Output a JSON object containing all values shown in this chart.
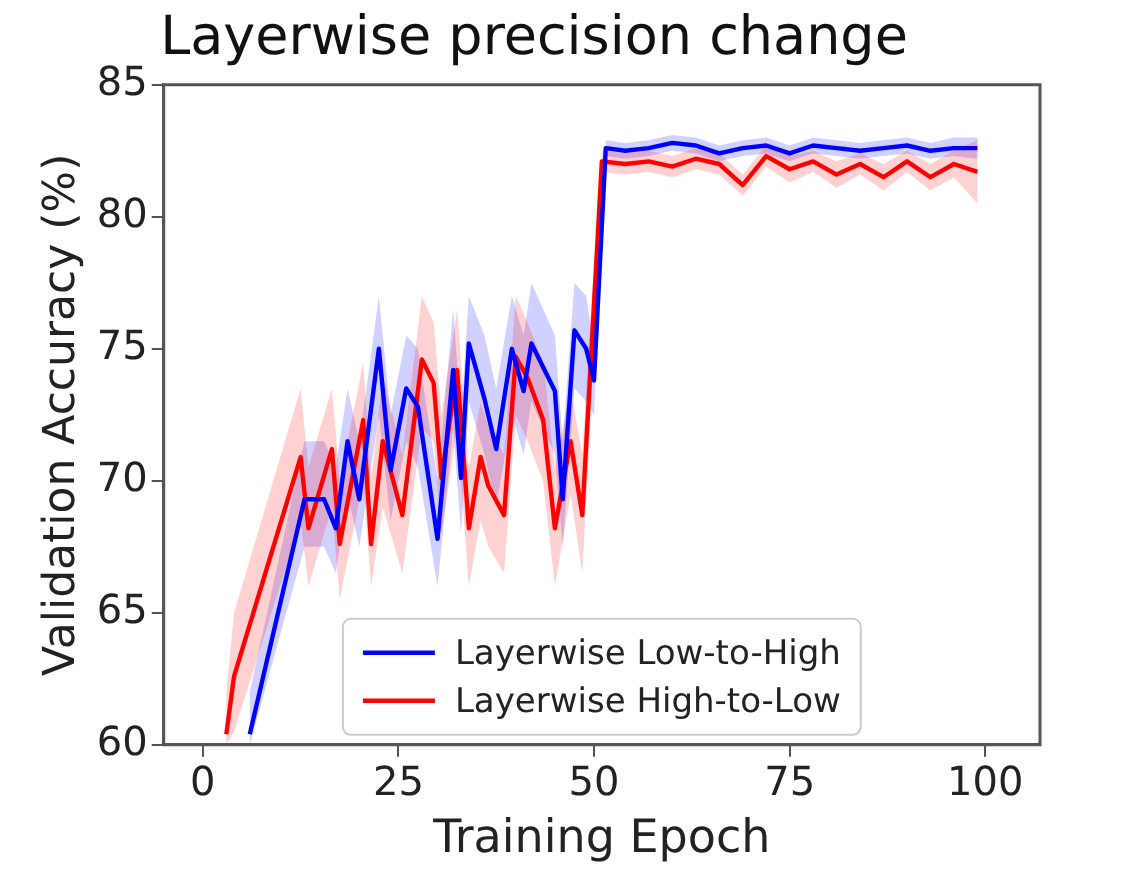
{
  "chart_data": {
    "type": "line",
    "title": "Layerwise precision change",
    "xlabel": "Training Epoch",
    "ylabel": "Validation Accuracy (%)",
    "xlim": [
      -5,
      107
    ],
    "xticks": [
      0,
      25,
      50,
      75,
      100
    ],
    "ylim": [
      60,
      85
    ],
    "yticks": [
      60,
      65,
      70,
      75,
      80,
      85
    ],
    "grid": false,
    "legend": "bottom",
    "marker": "none",
    "line_style": "solid",
    "series": [
      {
        "name": "Layerwise Low-to-High",
        "color": "#0000ff",
        "x": [
          6,
          13,
          15.5,
          17,
          18.5,
          20,
          22.5,
          24,
          26,
          27.5,
          30,
          32,
          33,
          34,
          36,
          37.5,
          39.5,
          41,
          42,
          45,
          46,
          47.5,
          49,
          50,
          51.5,
          54,
          57,
          60,
          63,
          66,
          69,
          72,
          75,
          78,
          81,
          84,
          87,
          90,
          93,
          96,
          99
        ],
        "values": [
          60.4,
          69.3,
          69.3,
          68.2,
          71.5,
          69.3,
          75,
          70.4,
          73.5,
          72.8,
          67.8,
          74.2,
          70.1,
          75.2,
          73.1,
          71.2,
          75,
          73.4,
          75.2,
          73.4,
          69.3,
          75.7,
          75,
          73.8,
          82.6,
          82.5,
          82.6,
          82.8,
          82.7,
          82.4,
          82.6,
          82.7,
          82.4,
          82.7,
          82.6,
          82.5,
          82.6,
          82.7,
          82.5,
          82.6,
          82.6
        ],
        "lower": [
          60,
          67.5,
          67.5,
          66.5,
          69.5,
          67.5,
          72.5,
          68.5,
          71.5,
          70.5,
          66,
          72,
          68,
          73,
          71,
          69,
          72.5,
          71,
          73,
          71,
          67.5,
          73.5,
          73,
          72.5,
          82.3,
          82.2,
          82.3,
          82.5,
          82.4,
          82.1,
          82.3,
          82.4,
          82.1,
          82.4,
          82.3,
          82.2,
          82.3,
          82.4,
          82.2,
          82.3,
          82.2
        ],
        "upper": [
          62,
          71.5,
          71.5,
          70.5,
          73.5,
          71.5,
          77,
          72.5,
          75.5,
          75,
          70,
          76.5,
          72.5,
          77,
          75.5,
          73.5,
          77,
          75.5,
          77.5,
          75.5,
          71.5,
          77.5,
          77,
          75,
          82.9,
          82.8,
          82.9,
          83.1,
          83,
          82.7,
          82.9,
          83,
          82.7,
          83,
          82.9,
          82.8,
          82.9,
          83,
          82.8,
          83,
          83
        ]
      },
      {
        "name": "Layerwise High-to-Low",
        "color": "#ff0000",
        "x": [
          3,
          4,
          12.5,
          13.5,
          16.5,
          17.5,
          20.5,
          21.5,
          23,
          25.5,
          28,
          29.5,
          30.5,
          32.5,
          34,
          35.5,
          36.5,
          38.5,
          40,
          41.5,
          43.5,
          45,
          47,
          48.5,
          49.5,
          51,
          54,
          57,
          60,
          63,
          66,
          69,
          72,
          75,
          78,
          81,
          84,
          87,
          90,
          93,
          96,
          99
        ],
        "values": [
          60.4,
          62.6,
          70.9,
          68.2,
          71.2,
          67.6,
          72.3,
          67.6,
          71.5,
          68.7,
          74.6,
          73.7,
          70.1,
          74.2,
          68.2,
          70.9,
          69.8,
          68.7,
          74.7,
          73.9,
          72.3,
          68.2,
          71.5,
          68.7,
          74,
          82.1,
          82,
          82.1,
          81.9,
          82.2,
          82,
          81.2,
          82.3,
          81.8,
          82.1,
          81.6,
          82,
          81.5,
          82.1,
          81.5,
          82,
          81.7
        ],
        "lower": [
          60,
          60.5,
          68.5,
          66,
          69,
          65.5,
          70,
          66,
          69,
          66.5,
          72,
          71.5,
          68,
          72,
          66,
          68.5,
          67.5,
          66.5,
          72.5,
          71.5,
          70,
          66,
          69.5,
          66.5,
          72,
          81.7,
          81.6,
          81.7,
          81.5,
          81.8,
          81.6,
          80.8,
          81.9,
          81.3,
          81.7,
          81.1,
          81.6,
          81,
          81.7,
          81,
          81.5,
          80.5
        ],
        "upper": [
          62,
          65,
          73.5,
          70.5,
          73.5,
          70,
          74.5,
          70,
          74,
          71,
          77,
          76,
          72.5,
          76.5,
          70.5,
          73,
          72,
          71,
          77,
          76,
          74.5,
          70.5,
          73.5,
          71,
          76,
          82.5,
          82.4,
          82.5,
          82.3,
          82.6,
          82.4,
          81.6,
          82.7,
          82.3,
          82.5,
          82.1,
          82.4,
          82,
          82.5,
          82,
          82.5,
          82.9
        ]
      }
    ]
  }
}
